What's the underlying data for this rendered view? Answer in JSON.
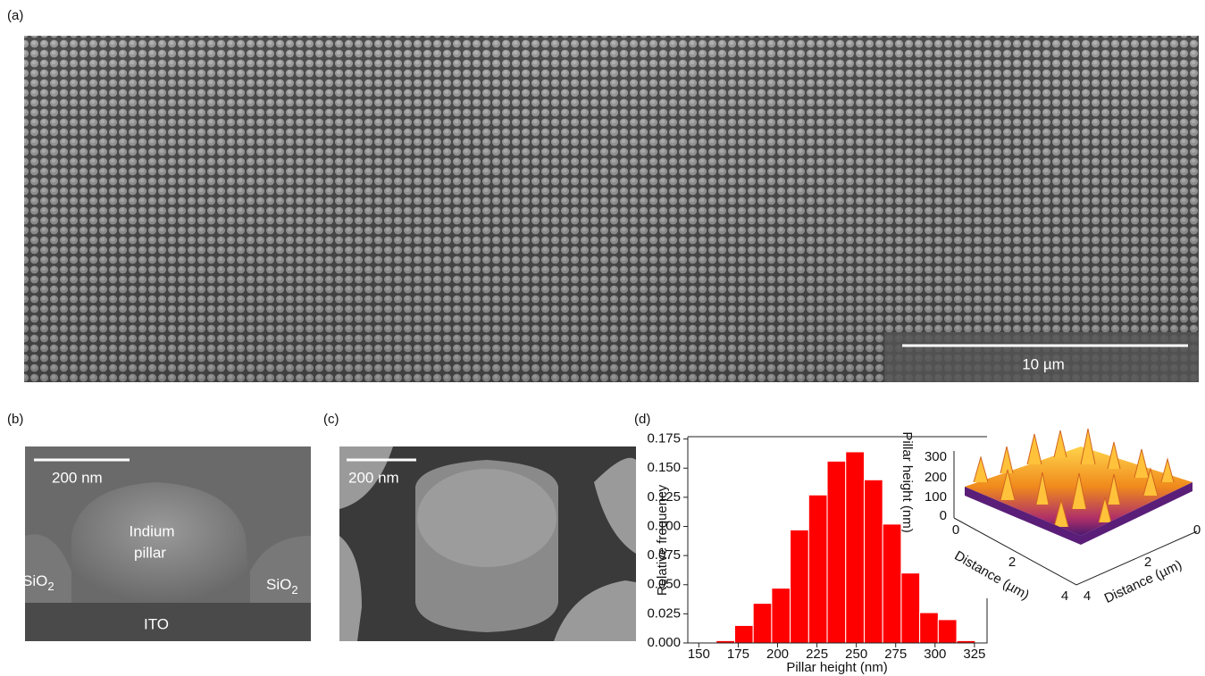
{
  "panels": {
    "a": {
      "label": "(a)",
      "scale_bar": "10 µm"
    },
    "b": {
      "label": "(b)",
      "scale_bar": "200 nm",
      "pillar_line1": "Indium",
      "pillar_line2": "pillar",
      "oxide_left": "SiO",
      "oxide_left_sub": "2",
      "oxide_right": "SiO",
      "oxide_right_sub": "2",
      "substrate": "ITO"
    },
    "c": {
      "label": "(c)",
      "scale_bar": "200 nm"
    },
    "d": {
      "label": "(d)",
      "afm": {
        "z_label": "Pillar height (nm)",
        "z_ticks": [
          "300",
          "200",
          "100",
          "0"
        ],
        "x_label": "Distance (µm)",
        "x_ticks": [
          "0",
          "2",
          "4"
        ],
        "y_label": "Distance (µm)",
        "y_ticks": [
          "4",
          "2",
          "0"
        ]
      }
    }
  },
  "chart_data": {
    "type": "histogram",
    "x_label": "Pillar height (nm)",
    "y_label": "Relative frequency",
    "color": "#ff0000",
    "bins": [
      161,
      172.75,
      184.5,
      196.25,
      208,
      219.75,
      231.5,
      243.25,
      255,
      266.75,
      278.5,
      290.25,
      302,
      313.75,
      325.5
    ],
    "values": [
      0.002,
      0.015,
      0.034,
      0.047,
      0.097,
      0.127,
      0.156,
      0.164,
      0.14,
      0.102,
      0.06,
      0.026,
      0.02,
      0.002
    ],
    "xlim": [
      143,
      333
    ],
    "xticks": [
      150,
      175,
      200,
      225,
      250,
      275,
      300,
      325
    ],
    "ylim": [
      0,
      0.177
    ],
    "yticks": [
      {
        "value": 0,
        "label": "0.000"
      },
      {
        "value": 0.025,
        "label": "0.025"
      },
      {
        "value": 0.05,
        "label": "0.050"
      },
      {
        "value": 0.075,
        "label": "0.075"
      },
      {
        "value": 0.1,
        "label": "0.100"
      },
      {
        "value": 0.125,
        "label": "0.125"
      },
      {
        "value": 0.15,
        "label": "0.150"
      },
      {
        "value": 0.175,
        "label": "0.175"
      }
    ]
  }
}
